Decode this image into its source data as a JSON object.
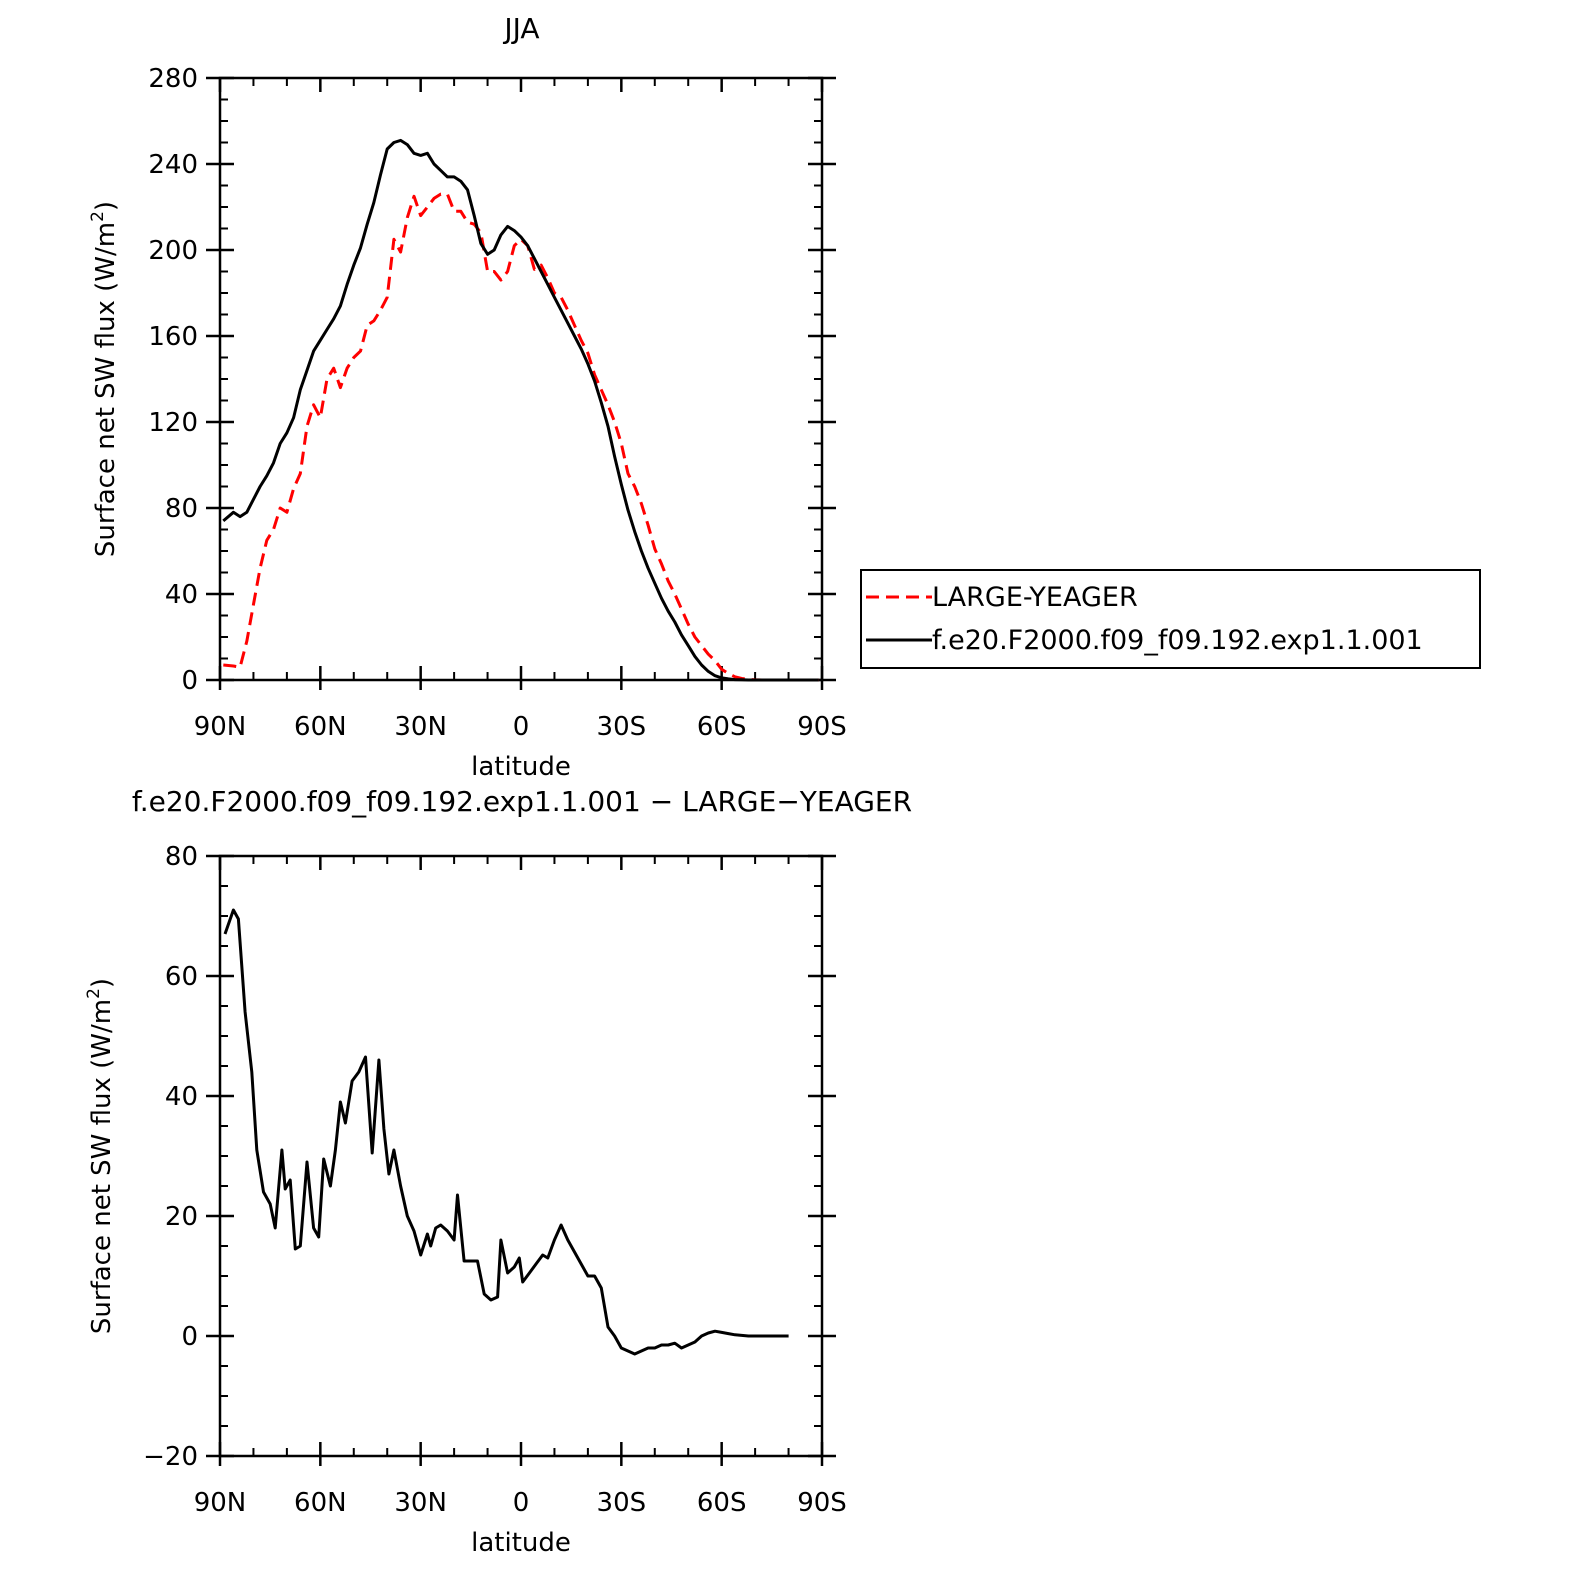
{
  "chart_data": [
    {
      "type": "line",
      "title": "JJA",
      "xlabel": "latitude",
      "ylabel": "Surface net SW flux (W/m",
      "ylabel_sup": "2",
      "ylabel_close": ")",
      "xlim": [
        90,
        -90
      ],
      "ylim": [
        0,
        280
      ],
      "xticks": [
        90,
        60,
        30,
        0,
        -30,
        -60,
        -90
      ],
      "xtick_labels": [
        "90N",
        "60N",
        "30N",
        "0",
        "30S",
        "60S",
        "90S"
      ],
      "yticks": [
        0,
        40,
        80,
        120,
        160,
        200,
        240,
        280
      ],
      "ytick_labels": [
        "0",
        "40",
        "80",
        "120",
        "160",
        "200",
        "240",
        "280"
      ],
      "legend": "right",
      "series": [
        {
          "name": "LARGE-YEAGER",
          "color": "#ff0000",
          "dash": "dashed",
          "x": [
            89,
            86,
            84,
            82,
            80,
            78,
            76,
            74,
            72,
            70,
            68,
            66,
            64,
            62,
            60,
            58,
            56,
            54,
            52,
            50,
            48,
            46,
            44,
            42,
            40,
            38,
            36,
            34,
            32,
            30,
            28,
            26,
            24,
            22,
            20,
            18,
            16,
            14,
            12,
            10,
            8,
            6,
            4,
            2,
            0,
            -2,
            -4,
            -6,
            -8,
            -10,
            -12,
            -14,
            -16,
            -18,
            -20,
            -22,
            -24,
            -26,
            -28,
            -30,
            -32,
            -34,
            -36,
            -38,
            -40,
            -42,
            -44,
            -46,
            -48,
            -50,
            -52,
            -54,
            -56,
            -58,
            -60,
            -62,
            -64,
            -66,
            -68,
            -70,
            -72,
            -74,
            -76,
            -78,
            -80,
            -82,
            -84,
            -86,
            -89
          ],
          "values": [
            7,
            6.5,
            6,
            18,
            35,
            52,
            65,
            70,
            80,
            78,
            89,
            96,
            118,
            128,
            122,
            140,
            145,
            136,
            145,
            150,
            153,
            165,
            167,
            172,
            178,
            205,
            199,
            215,
            225,
            216,
            220,
            224,
            226,
            226,
            218,
            218,
            213,
            212,
            208,
            190,
            190,
            186,
            190,
            202,
            205,
            202,
            191,
            193,
            187,
            180,
            178,
            172,
            165,
            158,
            152,
            142,
            135,
            128,
            120,
            110,
            96,
            90,
            82,
            72,
            61,
            54,
            46,
            40,
            33,
            26,
            20,
            16,
            12,
            9,
            5,
            3,
            1.5,
            0.7,
            0.3,
            0.1,
            0,
            0,
            0,
            0,
            0,
            0,
            0,
            0,
            0
          ]
        },
        {
          "name": "f.e20.F2000.f09_f09.192.exp1.1.001",
          "color": "#000000",
          "dash": "solid",
          "x": [
            89,
            86,
            84,
            82,
            80,
            78,
            76,
            74,
            72,
            70,
            68,
            66,
            64,
            62,
            60,
            58,
            56,
            54,
            52,
            50,
            48,
            46,
            44,
            42,
            40,
            38,
            36,
            34,
            32,
            30,
            28,
            26,
            24,
            22,
            20,
            18,
            16,
            14,
            12,
            10,
            8,
            6,
            4,
            2,
            0,
            -2,
            -4,
            -6,
            -8,
            -10,
            -12,
            -14,
            -16,
            -18,
            -20,
            -22,
            -24,
            -26,
            -28,
            -30,
            -32,
            -34,
            -36,
            -38,
            -40,
            -42,
            -44,
            -46,
            -48,
            -50,
            -52,
            -54,
            -56,
            -58,
            -60,
            -62,
            -64,
            -66,
            -68,
            -70,
            -72,
            -74,
            -76,
            -78,
            -80,
            -82,
            -84,
            -86,
            -89
          ],
          "values": [
            74,
            78,
            76,
            78,
            84,
            90,
            95,
            101,
            110,
            115,
            122,
            135,
            144,
            153,
            158,
            163,
            168,
            174,
            184,
            193,
            201,
            212,
            222,
            235,
            247,
            250,
            251,
            249,
            245,
            244,
            245,
            240,
            237,
            234,
            234,
            232,
            228,
            216,
            203,
            198,
            200,
            207,
            211,
            209,
            206,
            202,
            196,
            190,
            184,
            178,
            172,
            166,
            160,
            154,
            147,
            139,
            129,
            118,
            104,
            91,
            79,
            69,
            60,
            52,
            45,
            38,
            32,
            27,
            21,
            16,
            11,
            7,
            4,
            2,
            1,
            0.5,
            0.2,
            0.1,
            0,
            0,
            0,
            0,
            0,
            0,
            0,
            0,
            0,
            0,
            0
          ]
        }
      ]
    },
    {
      "type": "line",
      "title": "f.e20.F2000.f09_f09.192.exp1.1.001 − LARGE−YEAGER",
      "xlabel": "latitude",
      "ylabel": "Surface net SW flux (W/m",
      "ylabel_sup": "2",
      "ylabel_close": ")",
      "xlim": [
        90,
        -90
      ],
      "ylim": [
        -20,
        80
      ],
      "xticks": [
        90,
        60,
        30,
        0,
        -30,
        -60,
        -90
      ],
      "xtick_labels": [
        "90N",
        "60N",
        "30N",
        "0",
        "30S",
        "60S",
        "90S"
      ],
      "yticks": [
        -20,
        0,
        20,
        40,
        60,
        80
      ],
      "ytick_labels": [
        "−20",
        "0",
        "20",
        "40",
        "60",
        "80"
      ],
      "series": [
        {
          "color": "#000000",
          "dash": "solid",
          "x": [
            88.5,
            86,
            84.5,
            82.5,
            80.5,
            79,
            77,
            75,
            73.5,
            71.5,
            70.5,
            69,
            67.5,
            66,
            64,
            62,
            60.5,
            59,
            57,
            55.5,
            54,
            52.5,
            50.5,
            48.5,
            46.5,
            44.5,
            42.5,
            41,
            39.5,
            38,
            36,
            34,
            32,
            30,
            28,
            27,
            25.5,
            24,
            22,
            20,
            19,
            17,
            15,
            13,
            11,
            9,
            7,
            6,
            4,
            2,
            0.5,
            -0.5,
            -2.5,
            -4.5,
            -6.5,
            -8,
            -10,
            -12,
            -14,
            -16,
            -18,
            -20,
            -22,
            -24,
            -26,
            -28,
            -30,
            -32,
            -34,
            -36,
            -38,
            -40,
            -42,
            -44,
            -46,
            -48,
            -50,
            -52,
            -54,
            -56,
            -58,
            -60,
            -62,
            -64,
            -66,
            -68,
            -70,
            -72,
            -74,
            -76,
            -78,
            -80
          ],
          "values": [
            67,
            71,
            69.5,
            54,
            44,
            31,
            24,
            22,
            18,
            31,
            24.5,
            26,
            14.5,
            15,
            29,
            18,
            16.5,
            29.5,
            25,
            31,
            39,
            35.5,
            42.5,
            44,
            46.5,
            30.5,
            46,
            34.5,
            27,
            31,
            25,
            20,
            17.5,
            13.5,
            17,
            15,
            18,
            18.5,
            17.5,
            16,
            23.5,
            12.5,
            12.5,
            12.5,
            7,
            6,
            6.5,
            16,
            10.5,
            11.5,
            13,
            9,
            10.5,
            12,
            13.5,
            13,
            16,
            18.5,
            16,
            14,
            12,
            10,
            10,
            8,
            1.5,
            0,
            -2,
            -2.5,
            -3,
            -2.5,
            -2,
            -2,
            -1.5,
            -1.5,
            -1.2,
            -2,
            -1.5,
            -1,
            0,
            0.5,
            0.8,
            0.6,
            0.4,
            0.2,
            0.1,
            0,
            0,
            0,
            0,
            0,
            0,
            0
          ]
        }
      ]
    }
  ]
}
